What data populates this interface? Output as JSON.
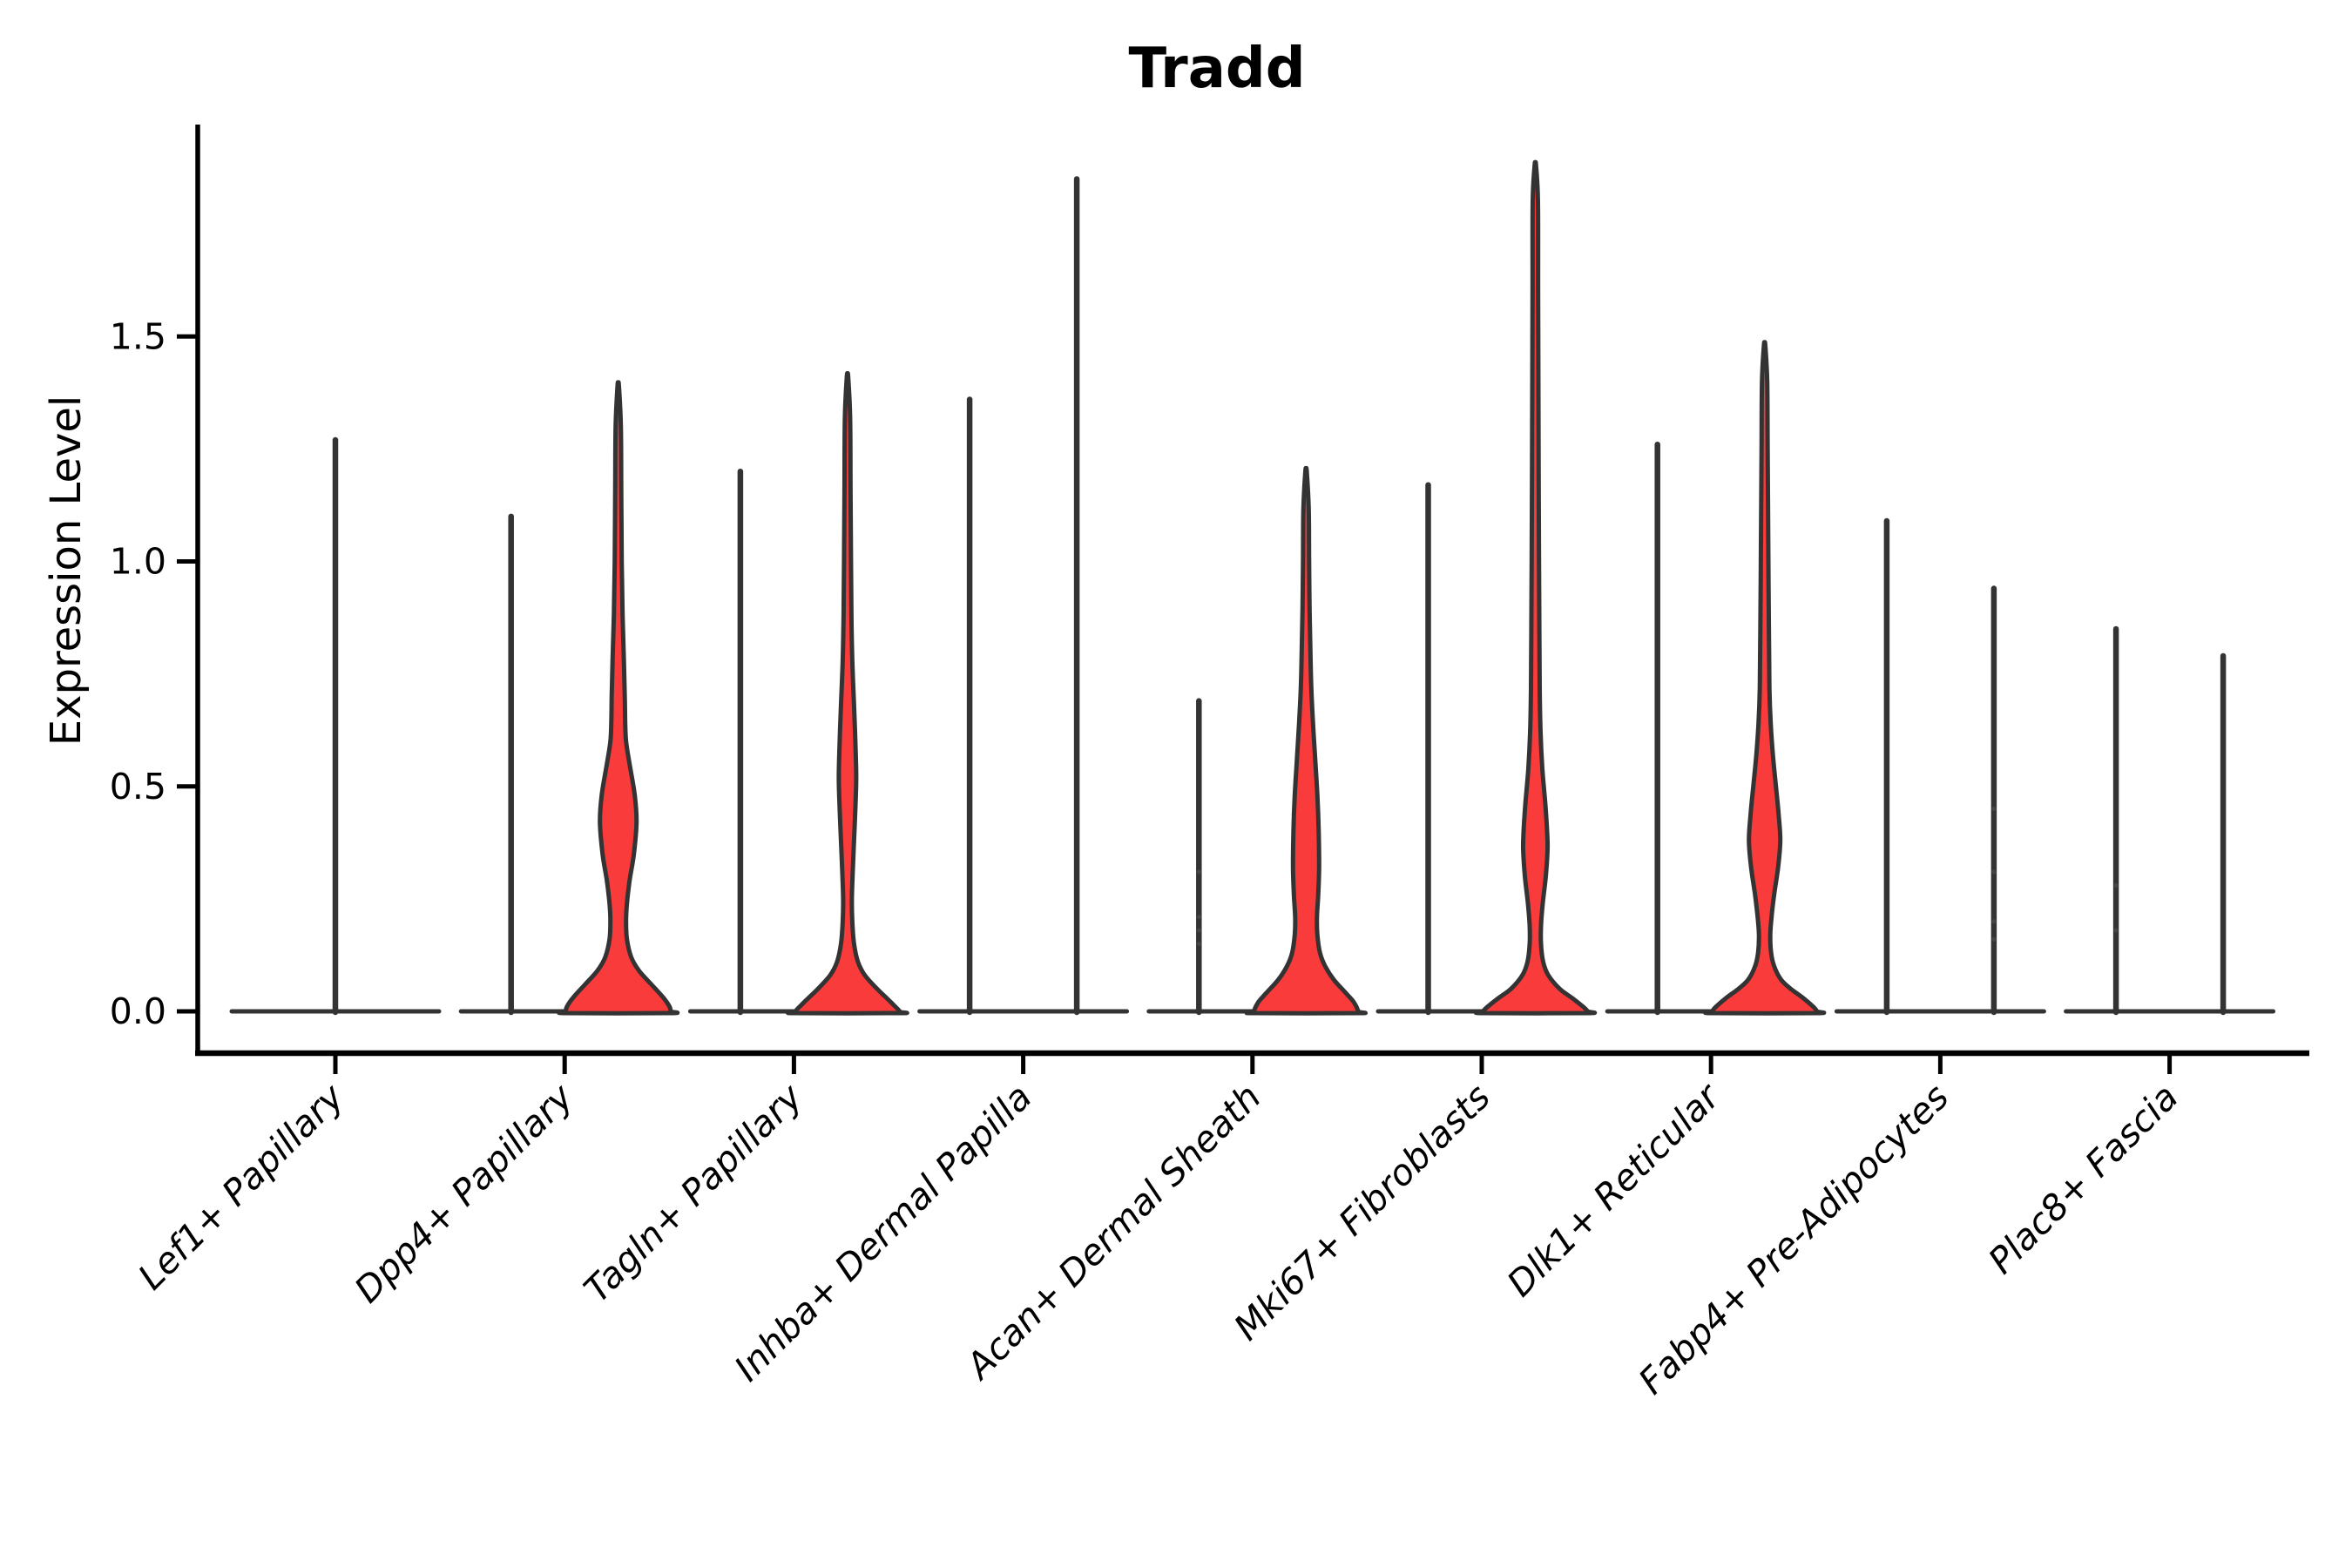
{
  "title": "Tradd",
  "ylabel": "Expression Level",
  "colors": {
    "violin_fill": "#f93b3b",
    "violin_outline": "#333333",
    "axis": "#000000",
    "jitter_dot": "#4a4a4a"
  },
  "chart_data": {
    "type": "violin",
    "title": "Tradd",
    "xlabel": "",
    "ylabel": "Expression Level",
    "ytick_labels": [
      "0.0",
      "0.5",
      "1.0",
      "1.5"
    ],
    "ytick_values": [
      0.0,
      0.5,
      1.0,
      1.5
    ],
    "ylim": [
      -0.093,
      1.965
    ],
    "grid": false,
    "legend": "none",
    "categories": [
      "Lef1+ Papillary",
      "Dpp4+ Papillary",
      "Tagln+ Papillary",
      "Inhba+ Dermal Papilla",
      "Acan+ Dermal Sheath",
      "Mki67+ Fibroblasts",
      "Dlk1+ Reticular",
      "Fabp4+ Pre-Adipocytes",
      "Plac8+ Fascia"
    ],
    "violins": [
      {
        "category": 0,
        "slot": "single",
        "max_value": 1.27,
        "filled": false,
        "base_halfwidth": 119,
        "dots": []
      },
      {
        "category": 1,
        "slot": "left",
        "max_value": 1.1,
        "filled": false,
        "base_halfwidth": 59,
        "dots": []
      },
      {
        "category": 1,
        "slot": "right",
        "max_value": 1.39,
        "filled": true,
        "base_halfwidth": 59,
        "dots": [],
        "profile": [
          [
            1.39,
            0.8
          ],
          [
            1.3,
            3
          ],
          [
            1.15,
            3.5
          ],
          [
            1.0,
            4
          ],
          [
            0.88,
            5
          ],
          [
            0.78,
            6.5
          ],
          [
            0.7,
            7.5
          ],
          [
            0.64,
            8
          ],
          [
            0.6,
            9
          ],
          [
            0.55,
            13
          ],
          [
            0.48,
            19
          ],
          [
            0.42,
            21
          ],
          [
            0.35,
            18
          ],
          [
            0.29,
            13
          ],
          [
            0.24,
            10
          ],
          [
            0.2,
            9
          ],
          [
            0.16,
            10
          ],
          [
            0.12,
            15
          ],
          [
            0.09,
            24
          ],
          [
            0.06,
            38
          ],
          [
            0.03,
            52
          ],
          [
            0.01,
            59
          ],
          [
            0.0,
            60
          ]
        ]
      },
      {
        "category": 2,
        "slot": "left",
        "max_value": 1.2,
        "filled": false,
        "base_halfwidth": 59,
        "dots": []
      },
      {
        "category": 2,
        "slot": "right",
        "max_value": 1.41,
        "filled": true,
        "base_halfwidth": 59,
        "dots": [],
        "profile": [
          [
            1.41,
            0.8
          ],
          [
            1.32,
            3
          ],
          [
            1.15,
            3.5
          ],
          [
            1.0,
            4
          ],
          [
            0.88,
            4.5
          ],
          [
            0.78,
            5.5
          ],
          [
            0.68,
            7.5
          ],
          [
            0.6,
            9
          ],
          [
            0.52,
            10
          ],
          [
            0.45,
            9
          ],
          [
            0.38,
            7.5
          ],
          [
            0.31,
            6
          ],
          [
            0.25,
            5
          ],
          [
            0.2,
            5.5
          ],
          [
            0.15,
            7.5
          ],
          [
            0.11,
            12
          ],
          [
            0.08,
            20
          ],
          [
            0.05,
            34
          ],
          [
            0.02,
            50
          ],
          [
            0.0,
            60
          ]
        ]
      },
      {
        "category": 3,
        "slot": "left",
        "max_value": 1.36,
        "filled": false,
        "base_halfwidth": 59,
        "dots": []
      },
      {
        "category": 3,
        "slot": "right",
        "max_value": 1.85,
        "filled": false,
        "base_halfwidth": 59,
        "dots": []
      },
      {
        "category": 4,
        "slot": "left",
        "max_value": 0.69,
        "filled": false,
        "base_halfwidth": 59,
        "dots": [
          0.31,
          0.21,
          0.18,
          0.15
        ]
      },
      {
        "category": 4,
        "slot": "right",
        "max_value": 1.2,
        "filled": true,
        "base_halfwidth": 59,
        "dots": [],
        "profile": [
          [
            1.2,
            0.8
          ],
          [
            1.12,
            3
          ],
          [
            1.0,
            3.5
          ],
          [
            0.9,
            4
          ],
          [
            0.8,
            5
          ],
          [
            0.72,
            6
          ],
          [
            0.64,
            8
          ],
          [
            0.56,
            10.5
          ],
          [
            0.48,
            13
          ],
          [
            0.4,
            14.5
          ],
          [
            0.32,
            15
          ],
          [
            0.26,
            14
          ],
          [
            0.21,
            12.5
          ],
          [
            0.17,
            13
          ],
          [
            0.13,
            16
          ],
          [
            0.1,
            22
          ],
          [
            0.07,
            32
          ],
          [
            0.04,
            46
          ],
          [
            0.02,
            55
          ],
          [
            0.0,
            60
          ]
        ]
      },
      {
        "category": 5,
        "slot": "left",
        "max_value": 1.17,
        "filled": false,
        "base_halfwidth": 59,
        "dots": []
      },
      {
        "category": 5,
        "slot": "right",
        "max_value": 1.88,
        "filled": true,
        "base_halfwidth": 59,
        "dots": [],
        "profile": [
          [
            1.88,
            0.8
          ],
          [
            1.8,
            3
          ],
          [
            1.6,
            3.2
          ],
          [
            1.4,
            3.5
          ],
          [
            1.2,
            3.8
          ],
          [
            1.0,
            4.2
          ],
          [
            0.85,
            4.6
          ],
          [
            0.72,
            5
          ],
          [
            0.62,
            6
          ],
          [
            0.54,
            8
          ],
          [
            0.46,
            11.5
          ],
          [
            0.4,
            13.5
          ],
          [
            0.36,
            14
          ],
          [
            0.3,
            12
          ],
          [
            0.24,
            8.5
          ],
          [
            0.19,
            6.5
          ],
          [
            0.15,
            6.5
          ],
          [
            0.11,
            9
          ],
          [
            0.08,
            15
          ],
          [
            0.05,
            28
          ],
          [
            0.03,
            42
          ],
          [
            0.01,
            55
          ],
          [
            0.0,
            60
          ]
        ]
      },
      {
        "category": 6,
        "slot": "left",
        "max_value": 1.26,
        "filled": false,
        "base_halfwidth": 59,
        "dots": []
      },
      {
        "category": 6,
        "slot": "right",
        "max_value": 1.48,
        "filled": true,
        "base_halfwidth": 59,
        "dots": [],
        "profile": [
          [
            1.48,
            0.8
          ],
          [
            1.4,
            3
          ],
          [
            1.25,
            3.5
          ],
          [
            1.1,
            4
          ],
          [
            0.95,
            4.5
          ],
          [
            0.83,
            5
          ],
          [
            0.72,
            5.5
          ],
          [
            0.64,
            7
          ],
          [
            0.57,
            9.5
          ],
          [
            0.5,
            13
          ],
          [
            0.44,
            16
          ],
          [
            0.38,
            18
          ],
          [
            0.32,
            15.5
          ],
          [
            0.26,
            11
          ],
          [
            0.21,
            8
          ],
          [
            0.17,
            6.5
          ],
          [
            0.13,
            7.5
          ],
          [
            0.1,
            11
          ],
          [
            0.07,
            19
          ],
          [
            0.05,
            30
          ],
          [
            0.03,
            44
          ],
          [
            0.01,
            56
          ],
          [
            0.0,
            60
          ]
        ]
      },
      {
        "category": 7,
        "slot": "left",
        "max_value": 1.09,
        "filled": false,
        "base_halfwidth": 59,
        "dots": []
      },
      {
        "category": 7,
        "slot": "right",
        "max_value": 0.94,
        "filled": false,
        "base_halfwidth": 59,
        "dots": [
          0.45,
          0.31,
          0.2,
          0.16
        ]
      },
      {
        "category": 8,
        "slot": "left",
        "max_value": 0.85,
        "filled": false,
        "base_halfwidth": 59,
        "dots": [
          0.28,
          0.18
        ]
      },
      {
        "category": 8,
        "slot": "right",
        "max_value": 0.79,
        "filled": false,
        "base_halfwidth": 59,
        "dots": []
      }
    ]
  }
}
